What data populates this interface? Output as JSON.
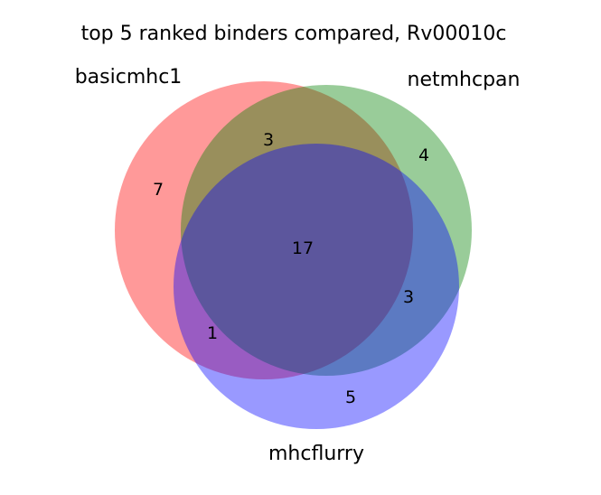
{
  "title": "top 5 ranked binders compared, Rv00010c",
  "sets": [
    {
      "name": "basicmhc1",
      "color": "#ff0000"
    },
    {
      "name": "netmhcpan",
      "color": "#008000"
    },
    {
      "name": "mhcflurry",
      "color": "#0000ff"
    }
  ],
  "regions": {
    "basicmhc1_only": "7",
    "netmhcpan_only": "4",
    "mhcflurry_only": "5",
    "basicmhc1_netmhcpan": "3",
    "basicmhc1_mhcflurry": "1",
    "netmhcpan_mhcflurry": "3",
    "all_three": "17"
  }
}
